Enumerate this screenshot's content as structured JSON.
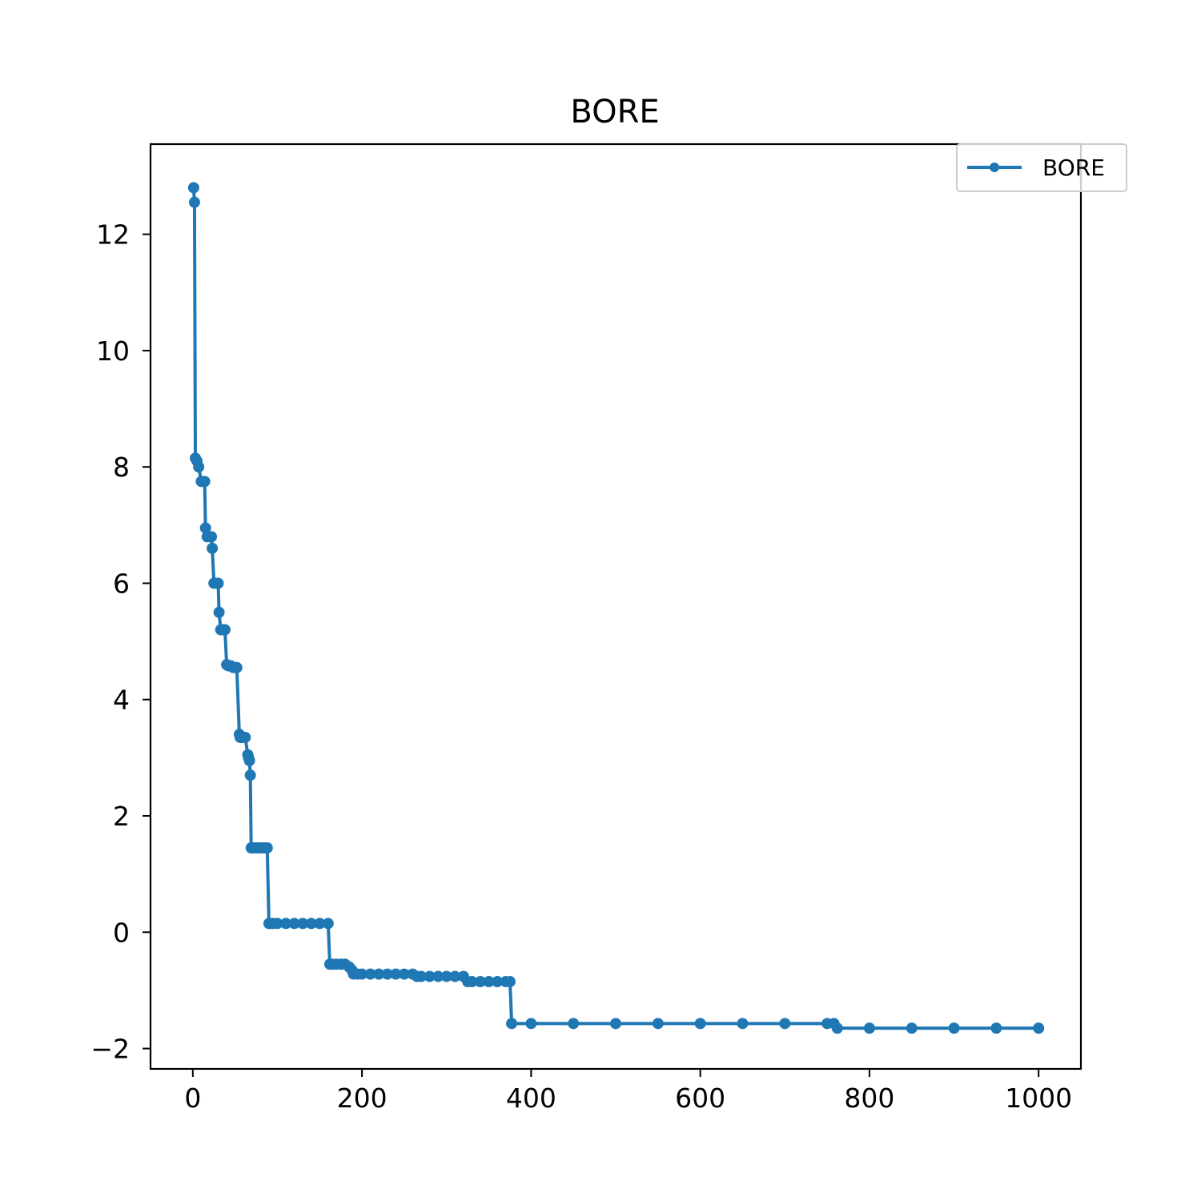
{
  "chart_data": {
    "type": "line",
    "title": "BORE",
    "xlabel": "",
    "ylabel": "",
    "xlim": [
      -50,
      1050
    ],
    "ylim": [
      -2.35,
      13.55
    ],
    "x_ticks": [
      0,
      200,
      400,
      600,
      800,
      1000
    ],
    "y_ticks": [
      -2,
      0,
      2,
      4,
      6,
      8,
      10,
      12
    ],
    "x_tick_labels": [
      "0",
      "200",
      "400",
      "600",
      "800",
      "1000"
    ],
    "y_tick_labels": [
      "−2",
      "0",
      "2",
      "4",
      "6",
      "8",
      "10",
      "12"
    ],
    "grid": false,
    "legend_position": "top-right",
    "colors": {
      "series": "#1f77b4"
    },
    "series": [
      {
        "name": "BORE",
        "x": [
          1,
          2,
          3,
          5,
          7,
          10,
          14,
          15,
          17,
          20,
          22,
          23,
          25,
          28,
          30,
          31,
          33,
          36,
          38,
          40,
          42,
          45,
          48,
          50,
          52,
          55,
          56,
          58,
          60,
          62,
          65,
          66,
          67,
          68,
          69,
          70,
          72,
          75,
          78,
          80,
          82,
          85,
          88,
          90,
          91,
          95,
          100,
          110,
          120,
          130,
          140,
          150,
          160,
          162,
          165,
          170,
          175,
          180,
          185,
          188,
          190,
          195,
          200,
          210,
          220,
          230,
          240,
          250,
          260,
          265,
          270,
          280,
          290,
          300,
          310,
          320,
          325,
          330,
          340,
          350,
          360,
          370,
          375,
          377,
          400,
          450,
          500,
          550,
          600,
          650,
          700,
          750,
          758,
          762,
          800,
          850,
          900,
          950,
          1000
        ],
        "y": [
          12.8,
          12.55,
          8.15,
          8.1,
          8.0,
          7.75,
          7.75,
          6.95,
          6.8,
          6.8,
          6.8,
          6.6,
          6.0,
          6.0,
          6.0,
          5.5,
          5.2,
          5.2,
          5.2,
          4.6,
          4.58,
          4.58,
          4.55,
          4.55,
          4.55,
          3.4,
          3.35,
          3.35,
          3.35,
          3.35,
          3.05,
          3.0,
          2.95,
          2.7,
          1.45,
          1.45,
          1.45,
          1.45,
          1.45,
          1.45,
          1.45,
          1.45,
          1.45,
          0.15,
          0.15,
          0.15,
          0.15,
          0.15,
          0.15,
          0.15,
          0.15,
          0.15,
          0.15,
          -0.55,
          -0.55,
          -0.55,
          -0.55,
          -0.55,
          -0.6,
          -0.65,
          -0.72,
          -0.72,
          -0.72,
          -0.72,
          -0.72,
          -0.72,
          -0.72,
          -0.72,
          -0.72,
          -0.76,
          -0.76,
          -0.76,
          -0.76,
          -0.76,
          -0.76,
          -0.76,
          -0.85,
          -0.85,
          -0.85,
          -0.85,
          -0.85,
          -0.85,
          -0.85,
          -1.57,
          -1.57,
          -1.57,
          -1.57,
          -1.57,
          -1.57,
          -1.57,
          -1.57,
          -1.57,
          -1.57,
          -1.65,
          -1.65,
          -1.65,
          -1.65,
          -1.65,
          -1.65
        ]
      }
    ]
  }
}
